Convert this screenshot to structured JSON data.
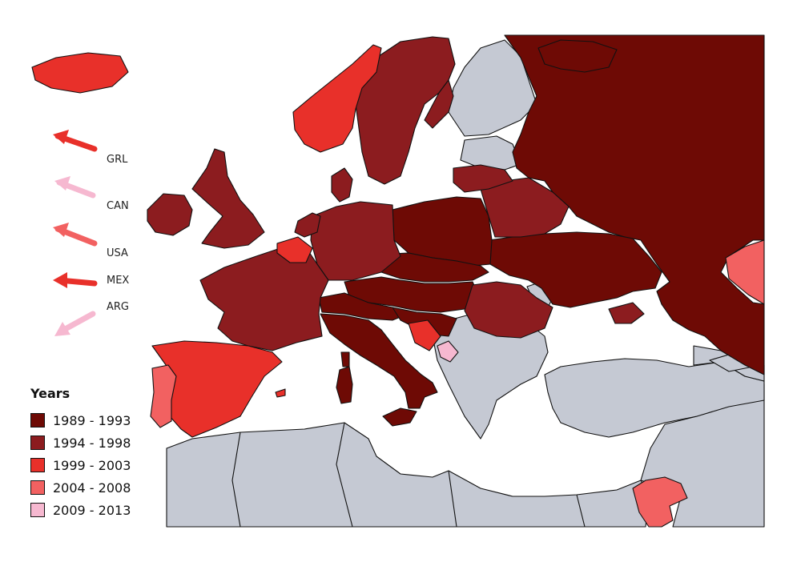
{
  "colors": {
    "c1989": "#6e0a05",
    "c1994": "#8c1c1f",
    "c1999": "#e8302a",
    "c2004": "#f26161",
    "c2009": "#f6b8d0",
    "nodata": "#c5c9d3",
    "sea": "#ffffff"
  },
  "arrows": [
    {
      "label": "GRL",
      "color": "#e8302a"
    },
    {
      "label": "CAN",
      "color": "#f6b8d0"
    },
    {
      "label": "USA",
      "color": "#f26161"
    },
    {
      "label": "MEX",
      "color": "#e8302a"
    },
    {
      "label": "ARG",
      "color": "#f6b8d0"
    }
  ],
  "legend": {
    "title": "Years",
    "items": [
      {
        "label": "1989 - 1993",
        "color": "#6e0a05"
      },
      {
        "label": "1994 - 1998",
        "color": "#8c1c1f"
      },
      {
        "label": "1999 - 2003",
        "color": "#e8302a"
      },
      {
        "label": "2004 - 2008",
        "color": "#f26161"
      },
      {
        "label": "2009 - 2013",
        "color": "#f6b8d0"
      }
    ]
  }
}
